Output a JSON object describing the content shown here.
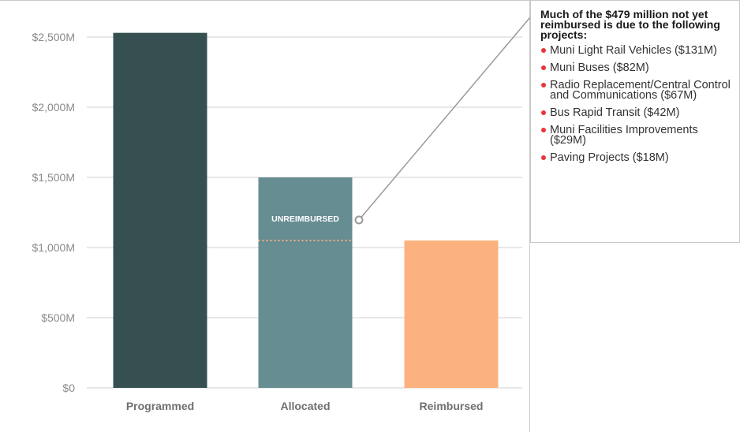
{
  "chart_data": {
    "type": "bar",
    "categories": [
      "Programmed",
      "Allocated",
      "Reimbursed"
    ],
    "values": [
      2530,
      1500,
      1050
    ],
    "ylim": [
      0,
      2500
    ],
    "yticks": [
      0,
      500,
      1000,
      1500,
      2000,
      2500
    ],
    "ytick_labels": [
      "$0",
      "$500M",
      "$1,000M",
      "$1,500M",
      "$2,000M",
      "$2,500M"
    ],
    "bar_colors": [
      "#364f50",
      "#668d92",
      "#fcb27e"
    ],
    "annotation_label": "UNREIMBURSED",
    "grid": true
  },
  "colors": {
    "grid": "#d0d0d0",
    "tick_text": "#8a8a8a",
    "category_text": "#6f6f6f",
    "dotted_line": "#fcb27e",
    "leader_line": "#999999",
    "bullet": "#e8353c"
  },
  "callout": {
    "heading": "Much of the $479 million not yet reimbursed is due to the following projects:",
    "items": [
      "Muni Light Rail Vehicles ($131M)",
      "Muni Buses ($82M)",
      "Radio Replacement/Central Control and Communications ($67M)",
      "Bus Rapid Transit ($42M)",
      "Muni Facilities Improvements ($29M)",
      "Paving Projects ($18M)"
    ]
  }
}
